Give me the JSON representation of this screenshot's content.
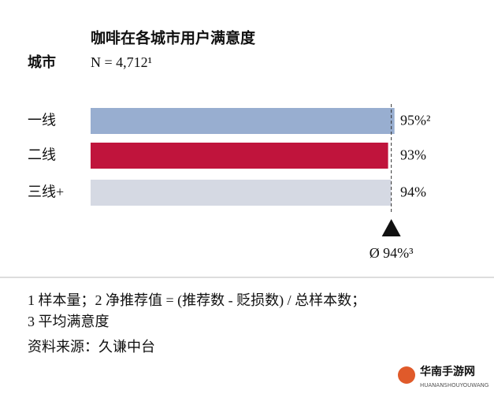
{
  "chart_data": {
    "type": "hbar",
    "title": "咖啡在各城市用户满意度",
    "y_label": "城市",
    "subtitle": "N = 4,712¹",
    "categories": [
      "一线",
      "二线",
      "三线+"
    ],
    "values": [
      95,
      93,
      94
    ],
    "value_labels": [
      "95%²",
      "93%",
      "94%"
    ],
    "colors": [
      "#98aed0",
      "#c0143c",
      "#d5d9e3"
    ],
    "xlim": [
      0,
      100
    ],
    "reference": {
      "value": 94,
      "label": "Ø 94%³"
    },
    "footnotes": [
      "1 样本量；2 净推荐值 = (推荐数 - 贬损数) / 总样本数；",
      "3 平均满意度",
      "资料来源：久谦中台"
    ]
  },
  "watermark": {
    "title": "华南手游网",
    "subtitle": "HUANANSHOUYOUWANG"
  }
}
